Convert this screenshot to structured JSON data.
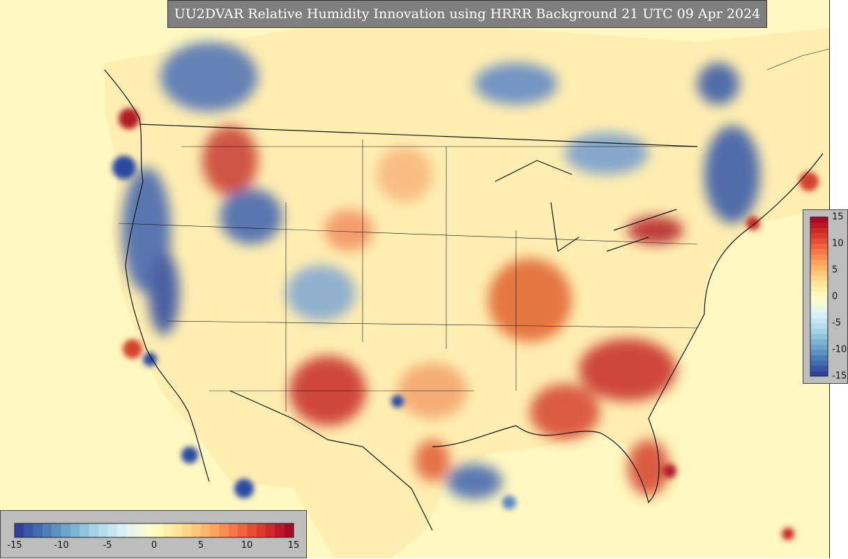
{
  "title": "UU2DVAR Relative Humidity Innovation using HRRR Background 21 UTC 09 Apr 2024",
  "colorbar": {
    "min": -15,
    "max": 15,
    "ticks": [
      -15,
      -10,
      -5,
      0,
      5,
      10,
      15
    ],
    "tick_labels": [
      "-15",
      "-10",
      "-5",
      "0",
      "5",
      "10",
      "15"
    ],
    "colors": [
      "#313695",
      "#4575b4",
      "#74add1",
      "#abd9e9",
      "#e0f3f8",
      "#ffffbf",
      "#fee090",
      "#fdae61",
      "#f46d43",
      "#d73027",
      "#a50026"
    ]
  },
  "field_colors": {
    "background": "#fff8c0",
    "wet": "#2a4aa0",
    "dry": "#c0181f"
  }
}
